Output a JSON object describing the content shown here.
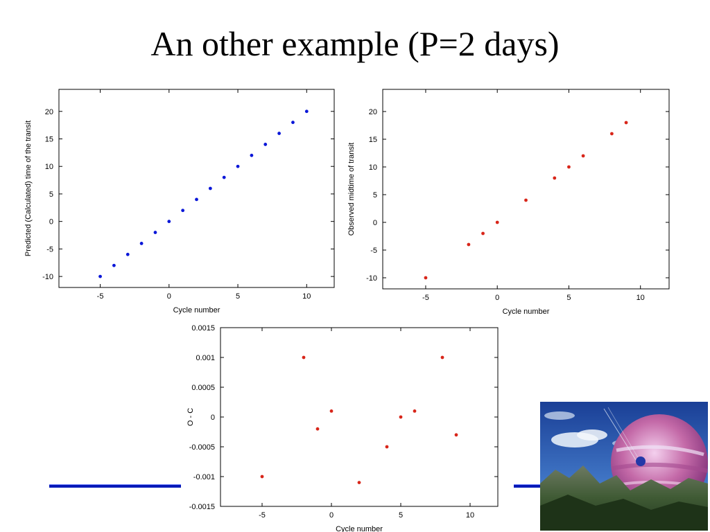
{
  "slide": {
    "title": "An other example (P=2 days)"
  },
  "colors": {
    "predicted": "#0a17d8",
    "observed": "#d8261a",
    "rule": "#0019b8"
  },
  "illustration": {
    "icon": "planet-landscape-icon"
  },
  "chart_data": [
    {
      "id": "predicted",
      "type": "scatter",
      "title": "",
      "xlabel": "Cycle number",
      "ylabel": "Predicted (Calculated) time of the transit",
      "xlim": [
        -8,
        12
      ],
      "ylim": [
        -12,
        24
      ],
      "xticks": [
        -5,
        0,
        5,
        10
      ],
      "yticks": [
        -10,
        -5,
        0,
        5,
        10,
        15,
        20
      ],
      "color": "#0a17d8",
      "grid": false,
      "x": [
        -5,
        -4,
        -3,
        -2,
        -1,
        0,
        1,
        2,
        3,
        4,
        5,
        6,
        7,
        8,
        9,
        10
      ],
      "y": [
        -10,
        -8,
        -6,
        -4,
        -2,
        0,
        2,
        4,
        6,
        8,
        10,
        12,
        14,
        16,
        18,
        20
      ]
    },
    {
      "id": "observed",
      "type": "scatter",
      "title": "",
      "xlabel": "Cycle number",
      "ylabel": "Observed midtime of transit",
      "xlim": [
        -8,
        12
      ],
      "ylim": [
        -12,
        24
      ],
      "xticks": [
        -5,
        0,
        5,
        10
      ],
      "yticks": [
        -10,
        -5,
        0,
        5,
        10,
        15,
        20
      ],
      "color": "#d8261a",
      "grid": false,
      "x": [
        -5,
        -2,
        -1,
        0,
        2,
        4,
        5,
        6,
        8,
        9
      ],
      "y": [
        -10,
        -4,
        -2,
        0,
        4,
        8,
        10,
        12,
        16,
        18
      ]
    },
    {
      "id": "oc",
      "type": "scatter",
      "title": "",
      "xlabel": "Cycle number",
      "ylabel": "O - C",
      "xlim": [
        -8,
        12
      ],
      "ylim": [
        -0.0015,
        0.0015
      ],
      "xticks": [
        -5,
        0,
        5,
        10
      ],
      "yticks": [
        -0.0015,
        -0.001,
        -0.0005,
        0,
        0.0005,
        0.001,
        0.0015
      ],
      "ytick_labels": [
        "-0.0015",
        "-0.001",
        "-0.0005",
        "0",
        "0.0005",
        "0.001",
        "0.0015"
      ],
      "color": "#d8261a",
      "grid": false,
      "x": [
        -5,
        -2,
        -1,
        0,
        2,
        4,
        5,
        6,
        8,
        9
      ],
      "y": [
        -0.001,
        0.001,
        -0.0002,
        0.0001,
        -0.0011,
        -0.0005,
        0,
        0.0001,
        0.001,
        -0.0003
      ]
    }
  ]
}
